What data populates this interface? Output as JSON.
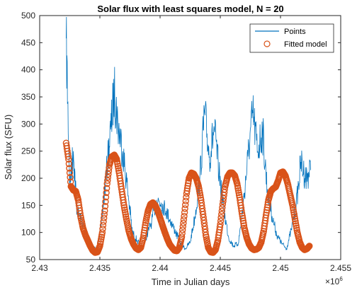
{
  "chart_data": {
    "type": "line",
    "title": "Solar flux with least squares model, N = 20",
    "xlabel": "Time in Julian days",
    "ylabel": "Solar flux (SFU)",
    "x_exponent_label": "×10",
    "x_exponent_power": "6",
    "xlim": [
      2.43,
      2.455
    ],
    "ylim": [
      50,
      500
    ],
    "xticks": [
      2.43,
      2.435,
      2.44,
      2.445,
      2.45,
      2.455
    ],
    "xtick_labels": [
      "2.43",
      "2.435",
      "2.44",
      "2.445",
      "2.45",
      "2.455"
    ],
    "yticks": [
      50,
      100,
      150,
      200,
      250,
      300,
      350,
      400,
      450,
      500
    ],
    "ytick_labels": [
      "50",
      "100",
      "150",
      "200",
      "250",
      "300",
      "350",
      "400",
      "450",
      "500"
    ],
    "grid": false,
    "legend_position": "top-right",
    "series": [
      {
        "name": "Points",
        "style": "line",
        "color": "#0072BD",
        "x": [
          2.4322,
          2.4325,
          2.4328,
          2.4331,
          2.4335,
          2.4339,
          2.4343,
          2.4347,
          2.4351,
          2.4355,
          2.4359,
          2.4362,
          2.4365,
          2.4369,
          2.4373,
          2.4377,
          2.4381,
          2.4385,
          2.4389,
          2.4393,
          2.4397,
          2.4401,
          2.4405,
          2.4409,
          2.4413,
          2.4417,
          2.4421,
          2.4425,
          2.4429,
          2.4433,
          2.4437,
          2.4441,
          2.4445,
          2.4449,
          2.4453,
          2.4457,
          2.4461,
          2.4465,
          2.4469,
          2.4473,
          2.4477,
          2.4481,
          2.4485,
          2.4489,
          2.4493,
          2.4497,
          2.4501,
          2.4505,
          2.4509,
          2.4513,
          2.4517,
          2.4521,
          2.4525
        ],
        "y": [
          458,
          190,
          250,
          140,
          120,
          95,
          75,
          68,
          110,
          200,
          290,
          360,
          300,
          250,
          180,
          100,
          85,
          70,
          95,
          120,
          160,
          155,
          140,
          120,
          100,
          80,
          70,
          82,
          130,
          200,
          320,
          240,
          290,
          210,
          140,
          90,
          75,
          80,
          150,
          240,
          320,
          250,
          290,
          180,
          130,
          95,
          80,
          70,
          105,
          150,
          230,
          200,
          215
        ]
      },
      {
        "name": "Fitted model",
        "style": "marker",
        "color": "#D95319",
        "x": [
          2.4322,
          2.4324,
          2.4326,
          2.4328,
          2.433,
          2.4332,
          2.4334,
          2.4336,
          2.4338,
          2.434,
          2.4342,
          2.4344,
          2.4346,
          2.4348,
          2.435,
          2.4352,
          2.4354,
          2.4356,
          2.4358,
          2.436,
          2.4362,
          2.4364,
          2.4366,
          2.4368,
          2.437,
          2.4372,
          2.4374,
          2.4376,
          2.4378,
          2.438,
          2.4382,
          2.4384,
          2.4386,
          2.4388,
          2.439,
          2.4392,
          2.4394,
          2.4396,
          2.4398,
          2.44,
          2.4402,
          2.4404,
          2.4406,
          2.4408,
          2.441,
          2.4412,
          2.4414,
          2.4416,
          2.4418,
          2.442,
          2.4422,
          2.4424,
          2.4426,
          2.4428,
          2.443,
          2.4432,
          2.4434,
          2.4436,
          2.4438,
          2.444,
          2.4442,
          2.4444,
          2.4446,
          2.4448,
          2.445,
          2.4452,
          2.4454,
          2.4456,
          2.4458,
          2.446,
          2.4462,
          2.4464,
          2.4466,
          2.4468,
          2.447,
          2.4472,
          2.4474,
          2.4476,
          2.4478,
          2.448,
          2.4482,
          2.4484,
          2.4486,
          2.4488,
          2.449,
          2.4492,
          2.4494,
          2.4496,
          2.4498,
          2.45,
          2.4502,
          2.4504,
          2.4506,
          2.4508,
          2.451,
          2.4512,
          2.4514,
          2.4516,
          2.4518,
          2.452,
          2.4522,
          2.4524
        ],
        "y": [
          265,
          235,
          185,
          178,
          176,
          160,
          130,
          108,
          95,
          85,
          75,
          67,
          63,
          64,
          75,
          100,
          140,
          190,
          225,
          240,
          243,
          235,
          210,
          180,
          150,
          125,
          103,
          88,
          78,
          71,
          68,
          72,
          90,
          118,
          140,
          152,
          155,
          150,
          140,
          127,
          113,
          100,
          88,
          78,
          72,
          67,
          66,
          72,
          92,
          130,
          172,
          200,
          210,
          208,
          200,
          185,
          160,
          128,
          95,
          72,
          64,
          63,
          68,
          85,
          115,
          152,
          185,
          203,
          210,
          210,
          205,
          190,
          165,
          135,
          108,
          90,
          78,
          71,
          68,
          69,
          72,
          82,
          102,
          132,
          160,
          176,
          181,
          184,
          195,
          210,
          212,
          205,
          190,
          170,
          150,
          125,
          100,
          82,
          72,
          68,
          70,
          75
        ]
      }
    ]
  }
}
